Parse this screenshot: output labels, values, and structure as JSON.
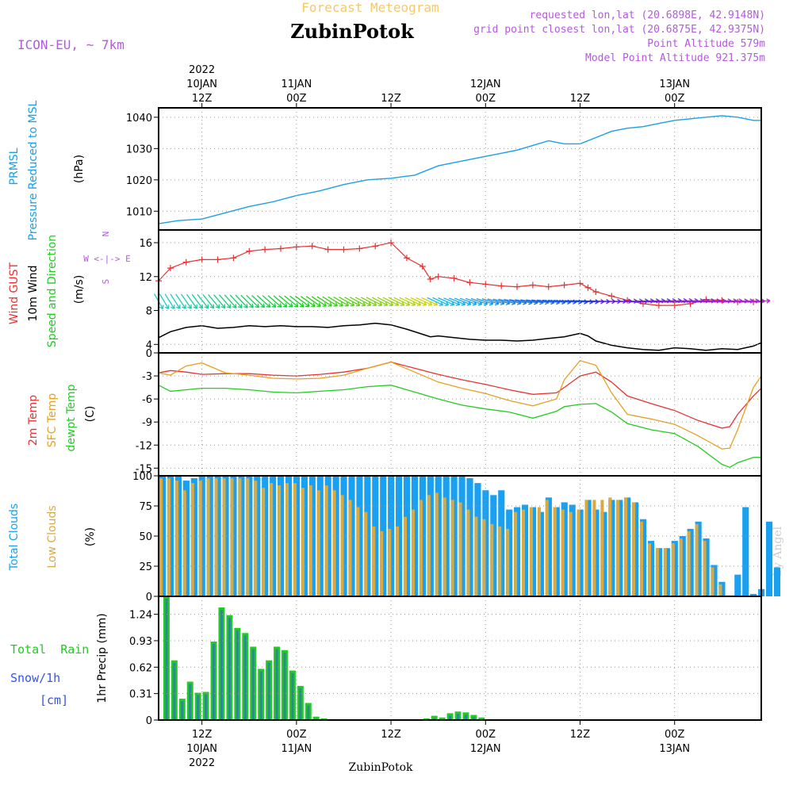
{
  "header": {
    "title": "Forecast Meteogram",
    "location": "ZubinPotok",
    "model": "ICON-EU, ~ 7km",
    "requested": "requested lon,lat (20.6898E, 42.9148N)",
    "closest": "grid point closest lon,lat (20.6875E, 42.9375N)",
    "point_altitude": "Point Altitude 579m",
    "model_altitude": "Model Point Altitude 921.375m",
    "footer": "ZubinPotok",
    "credit": "by Angel"
  },
  "time_axis": {
    "top_labels": [
      {
        "h": 0,
        "lines": [
          "2022",
          "10JAN",
          "12Z"
        ]
      },
      {
        "h": 12,
        "lines": [
          "11JAN",
          "00Z"
        ]
      },
      {
        "h": 24,
        "lines": [
          "12Z"
        ]
      },
      {
        "h": 36,
        "lines": [
          "12JAN",
          "00Z"
        ]
      },
      {
        "h": 48,
        "lines": [
          "12Z"
        ]
      },
      {
        "h": 60,
        "lines": [
          "13JAN",
          "00Z"
        ]
      }
    ],
    "bottom_labels": [
      {
        "h": 0,
        "lines": [
          "12Z",
          "10JAN",
          "2022"
        ]
      },
      {
        "h": 12,
        "lines": [
          "00Z",
          "11JAN"
        ]
      },
      {
        "h": 24,
        "lines": [
          "12Z"
        ]
      },
      {
        "h": 36,
        "lines": [
          "00Z",
          "12JAN"
        ]
      },
      {
        "h": 48,
        "lines": [
          "12Z"
        ]
      },
      {
        "h": 60,
        "lines": [
          "00Z",
          "13JAN"
        ]
      }
    ],
    "hours_start": -5.5,
    "hours_end": 71,
    "note": "hours after 10JAN 12Z"
  },
  "colors": {
    "pressure": "#1aa0e6",
    "gust": "#e83232",
    "wind": "#000000",
    "temp": "#e83232",
    "sfc": "#e8a020",
    "dew": "#22cc22",
    "total_clouds": "#1aa0f0",
    "low_clouds": "#d8aa44",
    "rain": "#22cc22",
    "snow": "#3355ee",
    "purple": "#b45adc",
    "orange": "#f5c96a"
  },
  "panels": {
    "pressure": {
      "labels": [
        "PRMSL",
        "Pressure Reduced to MSL"
      ],
      "unit": "(hPa)"
    },
    "wind": {
      "labels": [
        "Wind GUST",
        "10m Wind",
        "Speed and Direction"
      ],
      "unit": "(m/s)",
      "compass": [
        "N",
        "W <-|-> E",
        "S"
      ]
    },
    "temp": {
      "labels": [
        "2m Temp",
        "SFC Temp",
        "dewpt Temp"
      ],
      "unit": "(C)"
    },
    "clouds": {
      "labels": [
        "Total Clouds",
        "Low Clouds"
      ],
      "unit": "(%)"
    },
    "precip": {
      "labels": [
        "Total  Rain",
        "Snow/1h",
        "[cm]"
      ],
      "axis_title": "1hr Precip (mm)"
    }
  },
  "chart_data": [
    {
      "type": "line",
      "title": "PRMSL Pressure Reduced to MSL",
      "ylabel": "(hPa)",
      "ylim": [
        1004,
        1043
      ],
      "yticks": [
        1010,
        1020,
        1030,
        1040
      ],
      "x": [
        -5.5,
        -3,
        0,
        3,
        6,
        9,
        12,
        15,
        18,
        21,
        24,
        27,
        30,
        33,
        36,
        38,
        40,
        42,
        44,
        46,
        48,
        50,
        52,
        54,
        56,
        58,
        60,
        62,
        64,
        66,
        68,
        70,
        71
      ],
      "series": [
        {
          "name": "PRMSL",
          "values": [
            1006,
            1007,
            1007.5,
            1009.5,
            1011.5,
            1013,
            1015,
            1016.5,
            1018.5,
            1020,
            1020.5,
            1021.5,
            1024.5,
            1026,
            1027.5,
            1028.5,
            1029.5,
            1031,
            1032.5,
            1031.5,
            1031.5,
            1033.5,
            1035.5,
            1036.5,
            1037,
            1038,
            1039,
            1039.5,
            1040,
            1040.5,
            1040,
            1039,
            1039
          ]
        }
      ]
    },
    {
      "type": "line",
      "title": "Wind GUST / 10m Wind Speed and Direction",
      "ylabel": "(m/s)",
      "ylim": [
        3,
        17.5
      ],
      "yticks": [
        4,
        8,
        12,
        16
      ],
      "x": [
        -5.5,
        -4,
        -2,
        0,
        2,
        4,
        6,
        8,
        10,
        12,
        14,
        16,
        18,
        20,
        22,
        24,
        26,
        28,
        29,
        30,
        32,
        34,
        36,
        38,
        40,
        42,
        44,
        46,
        48,
        49,
        50,
        52,
        54,
        56,
        58,
        60,
        62,
        64,
        66,
        68,
        70,
        71
      ],
      "series": [
        {
          "name": "Wind GUST",
          "values": [
            11.5,
            13,
            13.7,
            14,
            14,
            14.2,
            15,
            15.2,
            15.3,
            15.5,
            15.6,
            15.2,
            15.2,
            15.3,
            15.6,
            16,
            14.2,
            13.2,
            11.7,
            12,
            11.8,
            11.3,
            11.1,
            10.9,
            10.8,
            11,
            10.8,
            11,
            11.2,
            10.7,
            10.2,
            9.7,
            9.2,
            8.8,
            8.6,
            8.6,
            8.8,
            9.3,
            9.2,
            9,
            9,
            9
          ]
        },
        {
          "name": "10m Wind",
          "values": [
            4.8,
            5.5,
            6,
            6.2,
            5.9,
            6,
            6.2,
            6.1,
            6.2,
            6.1,
            6.1,
            6,
            6.2,
            6.3,
            6.5,
            6.3,
            5.8,
            5.2,
            4.9,
            5,
            4.8,
            4.6,
            4.5,
            4.5,
            4.4,
            4.5,
            4.7,
            4.9,
            5.3,
            5,
            4.4,
            3.9,
            3.6,
            3.4,
            3.3,
            3.6,
            3.5,
            3.3,
            3.5,
            3.4,
            3.8,
            4.2
          ]
        }
      ],
      "wind_arrow_angles_deg": [
        60,
        58,
        55,
        52,
        50,
        48,
        45,
        42,
        40,
        38,
        35,
        32,
        30,
        28,
        27,
        26,
        25,
        24,
        24,
        25,
        22,
        20,
        18,
        15,
        12,
        10,
        8,
        6,
        5,
        4,
        2,
        0,
        -2,
        -4,
        -5,
        -6,
        -6,
        -5,
        -4,
        -4,
        -4,
        -4
      ]
    },
    {
      "type": "line",
      "title": "2m Temp / SFC Temp / dewpt Temp",
      "ylabel": "(C)",
      "ylim": [
        -16,
        0
      ],
      "yticks": [
        0,
        -3,
        -6,
        -9,
        -12,
        -15
      ],
      "x": [
        -5.5,
        -4,
        -2,
        0,
        3,
        6,
        9,
        12,
        15,
        18,
        21,
        24,
        27,
        30,
        33,
        36,
        39,
        42,
        45,
        46,
        48,
        50,
        52,
        54,
        57,
        60,
        63,
        66,
        67,
        68,
        70,
        71
      ],
      "series": [
        {
          "name": "2m Temp",
          "values": [
            -2.6,
            -2.3,
            -2.5,
            -2.8,
            -2.7,
            -2.7,
            -2.9,
            -3,
            -2.8,
            -2.5,
            -2,
            -1.2,
            -2,
            -2.8,
            -3.5,
            -4.1,
            -4.8,
            -5.4,
            -5.2,
            -4.5,
            -3,
            -2.5,
            -3.8,
            -5.6,
            -6.6,
            -7.5,
            -8.8,
            -9.8,
            -9.6,
            -8,
            -5.6,
            -4.6
          ]
        },
        {
          "name": "SFC Temp",
          "values": [
            -2.6,
            -2.9,
            -1.7,
            -1.3,
            -2.6,
            -2.9,
            -3.3,
            -3.4,
            -3.3,
            -2.9,
            -2,
            -1.2,
            -2.5,
            -3.8,
            -4.6,
            -5.3,
            -6.2,
            -6.9,
            -6,
            -3.5,
            -1,
            -1.6,
            -5.2,
            -8,
            -8.6,
            -9.3,
            -10.8,
            -12.5,
            -12.4,
            -10,
            -4.5,
            -3
          ]
        },
        {
          "name": "dewpt Temp",
          "values": [
            -4.2,
            -5,
            -4.8,
            -4.6,
            -4.6,
            -4.8,
            -5.1,
            -5.2,
            -5,
            -4.8,
            -4.4,
            -4.2,
            -5.1,
            -6,
            -6.8,
            -7.3,
            -7.7,
            -8.5,
            -7.6,
            -7,
            -6.7,
            -6.6,
            -7.7,
            -9.2,
            -10,
            -10.5,
            -12.2,
            -14.5,
            -14.9,
            -14.3,
            -13.6,
            -13.6
          ]
        }
      ]
    },
    {
      "type": "bar",
      "title": "Total Clouds / Low Clouds",
      "ylabel": "(%)",
      "ylim": [
        0,
        100
      ],
      "yticks": [
        0,
        25,
        50,
        75,
        100
      ],
      "x_start": -5.5,
      "x_step": 1,
      "series": [
        {
          "name": "Total Clouds",
          "values": [
            100,
            100,
            100,
            96,
            98,
            100,
            100,
            100,
            100,
            100,
            100,
            100,
            100,
            100,
            100,
            100,
            100,
            100,
            100,
            100,
            100,
            100,
            100,
            100,
            100,
            100,
            100,
            100,
            100,
            100,
            100,
            100,
            100,
            100,
            100,
            100,
            100,
            100,
            100,
            98,
            94,
            88,
            84,
            88,
            72,
            74,
            76,
            74,
            70,
            82,
            74,
            78,
            76,
            72,
            80,
            72,
            70,
            80,
            80,
            82,
            78,
            64,
            46,
            40,
            40,
            46,
            50,
            56,
            62,
            48,
            26,
            12,
            0,
            18,
            74,
            2,
            6,
            62,
            24,
            0
          ]
        },
        {
          "name": "Low Clouds",
          "values": [
            98,
            98,
            96,
            88,
            94,
            96,
            98,
            98,
            98,
            98,
            98,
            98,
            96,
            90,
            94,
            92,
            94,
            94,
            90,
            92,
            88,
            92,
            88,
            84,
            80,
            74,
            70,
            58,
            54,
            56,
            58,
            66,
            72,
            80,
            84,
            86,
            82,
            80,
            78,
            72,
            66,
            64,
            60,
            58,
            56,
            70,
            72,
            74,
            74,
            80,
            74,
            72,
            70,
            72,
            80,
            80,
            80,
            82,
            80,
            82,
            78,
            62,
            44,
            40,
            40,
            44,
            48,
            54,
            60,
            46,
            24,
            10,
            0,
            0,
            0,
            0,
            0,
            0,
            0,
            0
          ]
        }
      ]
    },
    {
      "type": "bar",
      "title": "1hr Precip (mm)",
      "ylabel": "1hr Precip (mm)",
      "ylim": [
        0,
        1.45
      ],
      "yticks": [
        0,
        0.31,
        0.62,
        0.93,
        1.24
      ],
      "x_start": -4.5,
      "x_step": 1,
      "series": [
        {
          "name": "Total Rain",
          "values": [
            1.45,
            0.7,
            0.25,
            0.45,
            0.32,
            0.33,
            0.92,
            1.32,
            1.23,
            1.08,
            1.02,
            0.86,
            0.6,
            0.7,
            0.86,
            0.82,
            0.58,
            0.4,
            0.2,
            0.04,
            0.02,
            0.01,
            0,
            0,
            0,
            0,
            0,
            0,
            0,
            0,
            0,
            0,
            0,
            0.02,
            0.05,
            0.03,
            0.08,
            0.1,
            0.09,
            0.06,
            0.03,
            0.01,
            0,
            0
          ]
        },
        {
          "name": "Snow/1h",
          "values": [
            0,
            0,
            0,
            0,
            0,
            0,
            0,
            0,
            0,
            0,
            0,
            0,
            0,
            0,
            0,
            0,
            0,
            0,
            0,
            0,
            0,
            0,
            0,
            0,
            0,
            0,
            0,
            0,
            0,
            0,
            0,
            0,
            0,
            0,
            0,
            0,
            0,
            0,
            0,
            0,
            0,
            0,
            0,
            0
          ]
        }
      ]
    }
  ]
}
